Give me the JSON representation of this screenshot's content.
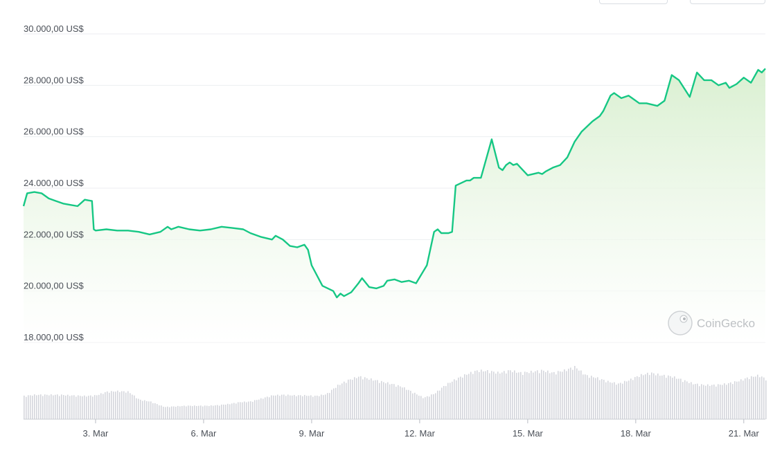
{
  "header": {
    "controls": []
  },
  "watermark": {
    "text": "CoinGecko",
    "icon": "gecko-logo-icon"
  },
  "colors": {
    "line": "#16c784",
    "fill_top": "#d8efcf",
    "fill_bottom": "#ffffff",
    "volume": "#d4d6dc",
    "grid": "#eceef1"
  },
  "chart_data": [
    {
      "type": "area",
      "title": "",
      "ylabel": "",
      "ylim": [
        18000,
        30000
      ],
      "y_ticks": [
        30000,
        28000,
        26000,
        24000,
        22000,
        20000,
        18000
      ],
      "y_tick_labels": [
        "30.000,00 US$",
        "28.000,00 US$",
        "26.000,00 US$",
        "24.000,00 US$",
        "22.000,00 US$",
        "20.000,00 US$",
        "18.000,00 US$"
      ],
      "x_ticks": [
        "3. Mar",
        "6. Mar",
        "9. Mar",
        "12. Mar",
        "15. Mar",
        "18. Mar",
        "21. Mar"
      ],
      "x_tick_days": [
        3,
        6,
        9,
        12,
        15,
        18,
        21
      ],
      "xlim_days": [
        1.0,
        21.6
      ],
      "grid": true,
      "series": [
        {
          "name": "",
          "x_days": [
            1.0,
            1.1,
            1.3,
            1.5,
            1.7,
            1.9,
            2.1,
            2.3,
            2.5,
            2.7,
            2.9,
            2.95,
            3.0,
            3.3,
            3.6,
            3.9,
            4.2,
            4.5,
            4.8,
            5.0,
            5.1,
            5.3,
            5.6,
            5.9,
            6.2,
            6.5,
            6.8,
            7.1,
            7.3,
            7.6,
            7.9,
            8.0,
            8.2,
            8.4,
            8.6,
            8.8,
            8.9,
            9.0,
            9.3,
            9.6,
            9.7,
            9.8,
            9.9,
            10.1,
            10.3,
            10.4,
            10.6,
            10.8,
            11.0,
            11.1,
            11.3,
            11.5,
            11.7,
            11.9,
            12.2,
            12.4,
            12.5,
            12.6,
            12.8,
            12.9,
            13.0,
            13.3,
            13.4,
            13.5,
            13.7,
            14.0,
            14.2,
            14.3,
            14.4,
            14.5,
            14.6,
            14.7,
            14.8,
            15.0,
            15.3,
            15.4,
            15.5,
            15.7,
            15.9,
            16.1,
            16.3,
            16.5,
            16.8,
            17.0,
            17.1,
            17.3,
            17.4,
            17.6,
            17.8,
            17.9,
            18.1,
            18.3,
            18.6,
            18.8,
            19.0,
            19.2,
            19.5,
            19.7,
            19.9,
            20.1,
            20.3,
            20.5,
            20.6,
            20.8,
            21.0,
            21.2,
            21.4,
            21.5,
            21.6
          ],
          "values": [
            23300,
            23800,
            23850,
            23800,
            23600,
            23500,
            23400,
            23350,
            23300,
            23550,
            23500,
            22400,
            22350,
            22400,
            22350,
            22350,
            22300,
            22200,
            22300,
            22500,
            22400,
            22500,
            22400,
            22350,
            22400,
            22500,
            22450,
            22400,
            22250,
            22100,
            22000,
            22150,
            22000,
            21750,
            21700,
            21800,
            21600,
            21000,
            20200,
            20000,
            19750,
            19900,
            19800,
            19950,
            20300,
            20500,
            20150,
            20100,
            20200,
            20400,
            20450,
            20350,
            20400,
            20300,
            21000,
            22300,
            22400,
            22250,
            22250,
            22300,
            24100,
            24300,
            24300,
            24400,
            24400,
            25900,
            24800,
            24700,
            24900,
            25000,
            24900,
            24950,
            24800,
            24500,
            24600,
            24550,
            24650,
            24800,
            24900,
            25200,
            25800,
            26200,
            26600,
            26800,
            27000,
            27600,
            27700,
            27500,
            27600,
            27500,
            27300,
            27300,
            27200,
            27400,
            28400,
            28200,
            27550,
            28500,
            28200,
            28200,
            28000,
            28100,
            27900,
            28050,
            28300,
            28100,
            28600,
            28500,
            28650
          ]
        }
      ]
    },
    {
      "type": "bar",
      "title": "",
      "ylabel": "",
      "ylim": [
        0,
        100
      ],
      "x_days": [
        1.0,
        1.3,
        1.7,
        2.0,
        2.3,
        2.7,
        3.0,
        3.3,
        3.6,
        3.9,
        4.2,
        4.5,
        4.9,
        5.2,
        5.5,
        5.8,
        6.1,
        6.4,
        6.7,
        7.0,
        7.3,
        7.6,
        7.9,
        8.2,
        8.5,
        8.8,
        9.1,
        9.4,
        9.7,
        10.0,
        10.3,
        10.6,
        10.9,
        11.2,
        11.5,
        11.8,
        12.1,
        12.4,
        12.7,
        13.0,
        13.3,
        13.6,
        13.9,
        14.2,
        14.5,
        14.8,
        15.1,
        15.4,
        15.7,
        16.0,
        16.3,
        16.6,
        16.9,
        17.2,
        17.5,
        17.8,
        18.1,
        18.4,
        18.7,
        19.0,
        19.3,
        19.6,
        19.9,
        20.2,
        20.5,
        20.8,
        21.1,
        21.4,
        21.6
      ],
      "values": [
        38,
        40,
        40,
        40,
        39,
        38,
        39,
        45,
        46,
        45,
        32,
        29,
        20,
        21,
        22,
        22,
        22,
        23,
        25,
        28,
        29,
        34,
        39,
        40,
        39,
        39,
        38,
        41,
        55,
        64,
        70,
        66,
        62,
        58,
        53,
        44,
        35,
        42,
        56,
        66,
        74,
        80,
        79,
        76,
        80,
        76,
        78,
        80,
        76,
        80,
        86,
        72,
        68,
        62,
        58,
        64,
        72,
        76,
        72,
        70,
        64,
        58,
        56,
        56,
        58,
        62,
        68,
        72,
        66
      ]
    }
  ]
}
